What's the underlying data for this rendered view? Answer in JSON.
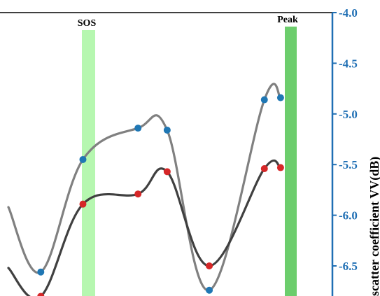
{
  "chart_data": {
    "type": "line",
    "ylabel": "kscatter coefficient VV(dB)",
    "ylim": [
      -6.8,
      -4.0
    ],
    "yticks": [
      "-4.0",
      "-4.5",
      "-5.0",
      "-5.5",
      "-6.0",
      "-6.5"
    ],
    "y_axis_side": "right",
    "grid": false,
    "bands": [
      {
        "label": "SOS",
        "color": "#b6f7b0"
      },
      {
        "label": "Peak",
        "color": "#6ccd6c"
      }
    ],
    "series": [
      {
        "color": "#808080",
        "marker_color": "#1f77b4",
        "points": [
          {
            "x": 0.0,
            "y": -5.92
          },
          {
            "x": 0.1,
            "y": -6.56
          },
          {
            "x": 0.23,
            "y": -5.45
          },
          {
            "x": 0.4,
            "y": -5.14
          },
          {
            "x": 0.49,
            "y": -5.16
          },
          {
            "x": 0.62,
            "y": -6.74
          },
          {
            "x": 0.79,
            "y": -4.86
          },
          {
            "x": 0.84,
            "y": -4.84
          }
        ]
      },
      {
        "color": "#404040",
        "marker_color": "#d62728",
        "points": [
          {
            "x": 0.0,
            "y": -6.52
          },
          {
            "x": 0.1,
            "y": -6.8
          },
          {
            "x": 0.23,
            "y": -5.89
          },
          {
            "x": 0.4,
            "y": -5.79
          },
          {
            "x": 0.49,
            "y": -5.57
          },
          {
            "x": 0.62,
            "y": -6.5
          },
          {
            "x": 0.79,
            "y": -5.54
          },
          {
            "x": 0.84,
            "y": -5.53
          }
        ]
      }
    ]
  }
}
